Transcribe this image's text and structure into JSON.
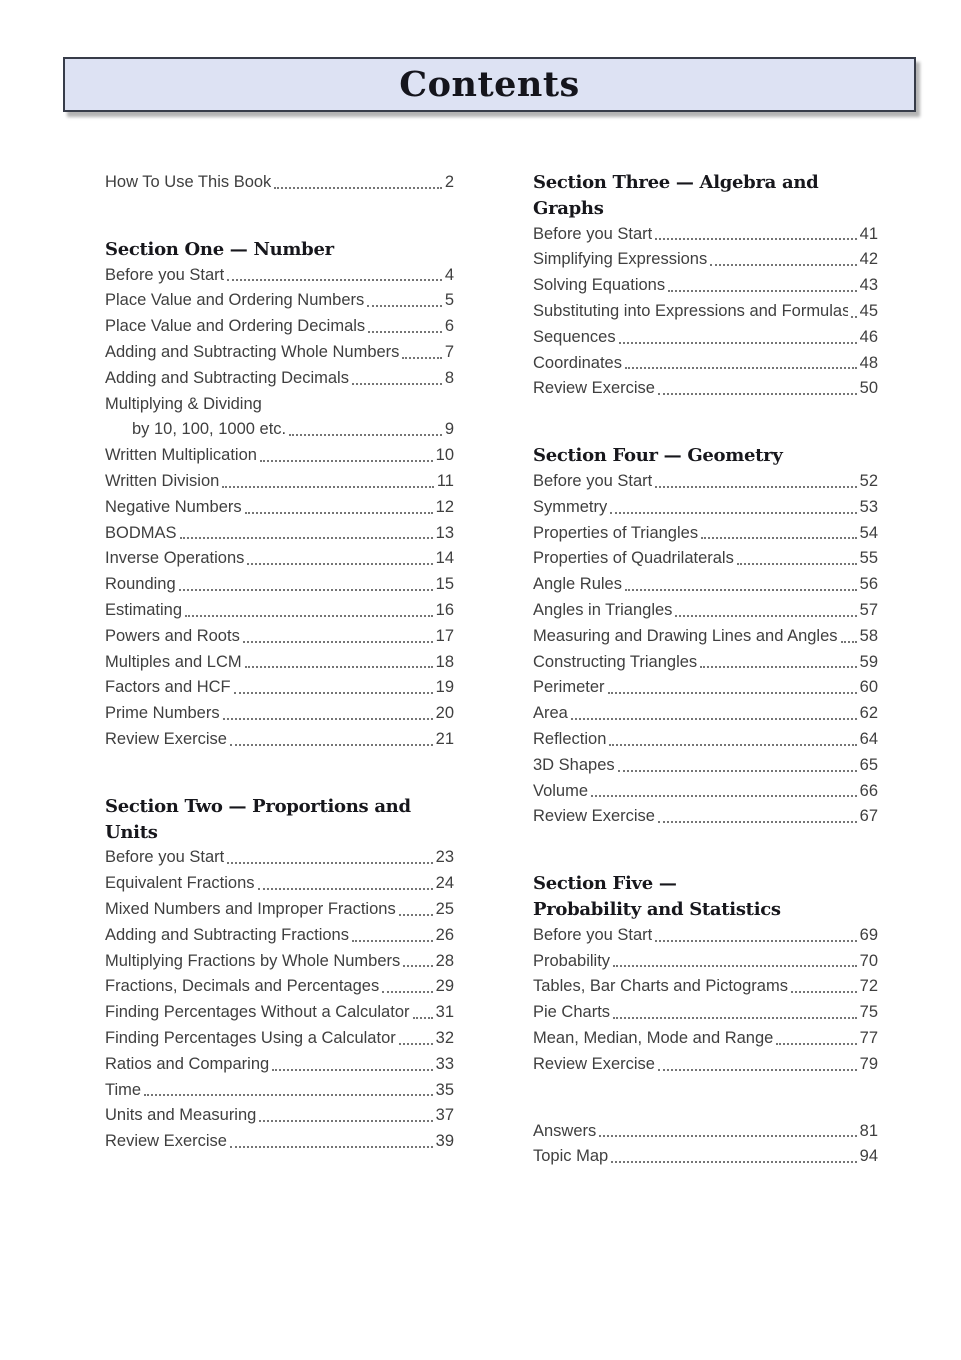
{
  "title_bar": {
    "title": "Contents",
    "bg_color": "#dde2f3",
    "border_color": "#373c49",
    "shadow_color": "#b4b4b4"
  },
  "text_colors": {
    "heading": "#17171c",
    "entry": "#3f3f3f",
    "dot_leader": "#757575"
  },
  "columns": [
    {
      "name": "left",
      "blocks": [
        {
          "heading": null,
          "entries": [
            {
              "label": "How To Use This Book",
              "page": "2"
            }
          ]
        },
        {
          "heading": "Section One — Number",
          "entries": [
            {
              "label": "Before you Start",
              "page": "4"
            },
            {
              "label": "Place Value and Ordering Numbers",
              "page": "5"
            },
            {
              "label": "Place Value and Ordering Decimals",
              "page": "6"
            },
            {
              "label": "Adding and Subtracting Whole Numbers",
              "page": "7"
            },
            {
              "label": "Adding and Subtracting Decimals",
              "page": "8"
            },
            {
              "label": "Multiplying & Dividing",
              "page": null
            },
            {
              "label": "by 10, 100, 1000 etc.",
              "page": "9",
              "indent": true
            },
            {
              "label": "Written Multiplication",
              "page": "10"
            },
            {
              "label": "Written Division",
              "page": "11"
            },
            {
              "label": "Negative Numbers",
              "page": "12"
            },
            {
              "label": "BODMAS",
              "page": "13"
            },
            {
              "label": "Inverse Operations",
              "page": "14"
            },
            {
              "label": "Rounding",
              "page": "15"
            },
            {
              "label": "Estimating",
              "page": "16"
            },
            {
              "label": "Powers and Roots",
              "page": "17"
            },
            {
              "label": "Multiples and LCM",
              "page": "18"
            },
            {
              "label": "Factors and HCF",
              "page": "19"
            },
            {
              "label": "Prime Numbers",
              "page": "20"
            },
            {
              "label": "Review Exercise",
              "page": "21"
            }
          ]
        },
        {
          "heading": "Section Two — Proportions and Units",
          "entries": [
            {
              "label": "Before you Start",
              "page": "23"
            },
            {
              "label": "Equivalent Fractions",
              "page": "24"
            },
            {
              "label": "Mixed Numbers and Improper Fractions",
              "page": "25"
            },
            {
              "label": "Adding and Subtracting Fractions",
              "page": "26"
            },
            {
              "label": "Multiplying Fractions by Whole Numbers",
              "page": "28"
            },
            {
              "label": "Fractions, Decimals and Percentages",
              "page": "29"
            },
            {
              "label": "Finding Percentages Without a Calculator",
              "page": "31"
            },
            {
              "label": "Finding Percentages Using a Calculator",
              "page": "32"
            },
            {
              "label": "Ratios and Comparing",
              "page": "33"
            },
            {
              "label": "Time",
              "page": "35"
            },
            {
              "label": "Units and Measuring",
              "page": "37"
            },
            {
              "label": "Review Exercise",
              "page": "39"
            }
          ]
        }
      ]
    },
    {
      "name": "right",
      "blocks": [
        {
          "heading": "Section Three — Algebra and Graphs",
          "entries": [
            {
              "label": "Before you Start",
              "page": "41"
            },
            {
              "label": "Simplifying Expressions",
              "page": "42"
            },
            {
              "label": "Solving Equations",
              "page": "43"
            },
            {
              "label": "Substituting into Expressions and Formulas",
              "page": "45"
            },
            {
              "label": "Sequences",
              "page": "46"
            },
            {
              "label": "Coordinates",
              "page": "48"
            },
            {
              "label": "Review Exercise",
              "page": "50"
            }
          ]
        },
        {
          "heading": "Section Four — Geometry",
          "entries": [
            {
              "label": "Before you Start",
              "page": "52"
            },
            {
              "label": "Symmetry",
              "page": "53"
            },
            {
              "label": "Properties of Triangles",
              "page": "54"
            },
            {
              "label": "Properties of Quadrilaterals",
              "page": "55"
            },
            {
              "label": "Angle Rules",
              "page": "56"
            },
            {
              "label": "Angles in Triangles",
              "page": "57"
            },
            {
              "label": "Measuring and Drawing Lines and Angles",
              "page": "58"
            },
            {
              "label": "Constructing Triangles",
              "page": "59"
            },
            {
              "label": "Perimeter",
              "page": "60"
            },
            {
              "label": "Area",
              "page": "62"
            },
            {
              "label": "Reflection",
              "page": "64"
            },
            {
              "label": "3D Shapes",
              "page": "65"
            },
            {
              "label": "Volume",
              "page": "66"
            },
            {
              "label": "Review Exercise",
              "page": "67"
            }
          ]
        },
        {
          "heading": "Section Five —\nProbability and Statistics",
          "entries": [
            {
              "label": "Before you Start",
              "page": "69"
            },
            {
              "label": "Probability",
              "page": "70"
            },
            {
              "label": "Tables, Bar Charts and Pictograms",
              "page": "72"
            },
            {
              "label": "Pie Charts",
              "page": "75"
            },
            {
              "label": "Mean, Median, Mode and Range",
              "page": "77"
            },
            {
              "label": "Review Exercise",
              "page": "79"
            }
          ]
        },
        {
          "heading": null,
          "entries": [
            {
              "label": "Answers",
              "page": "81"
            },
            {
              "label": "Topic Map",
              "page": "94"
            }
          ]
        }
      ]
    }
  ]
}
